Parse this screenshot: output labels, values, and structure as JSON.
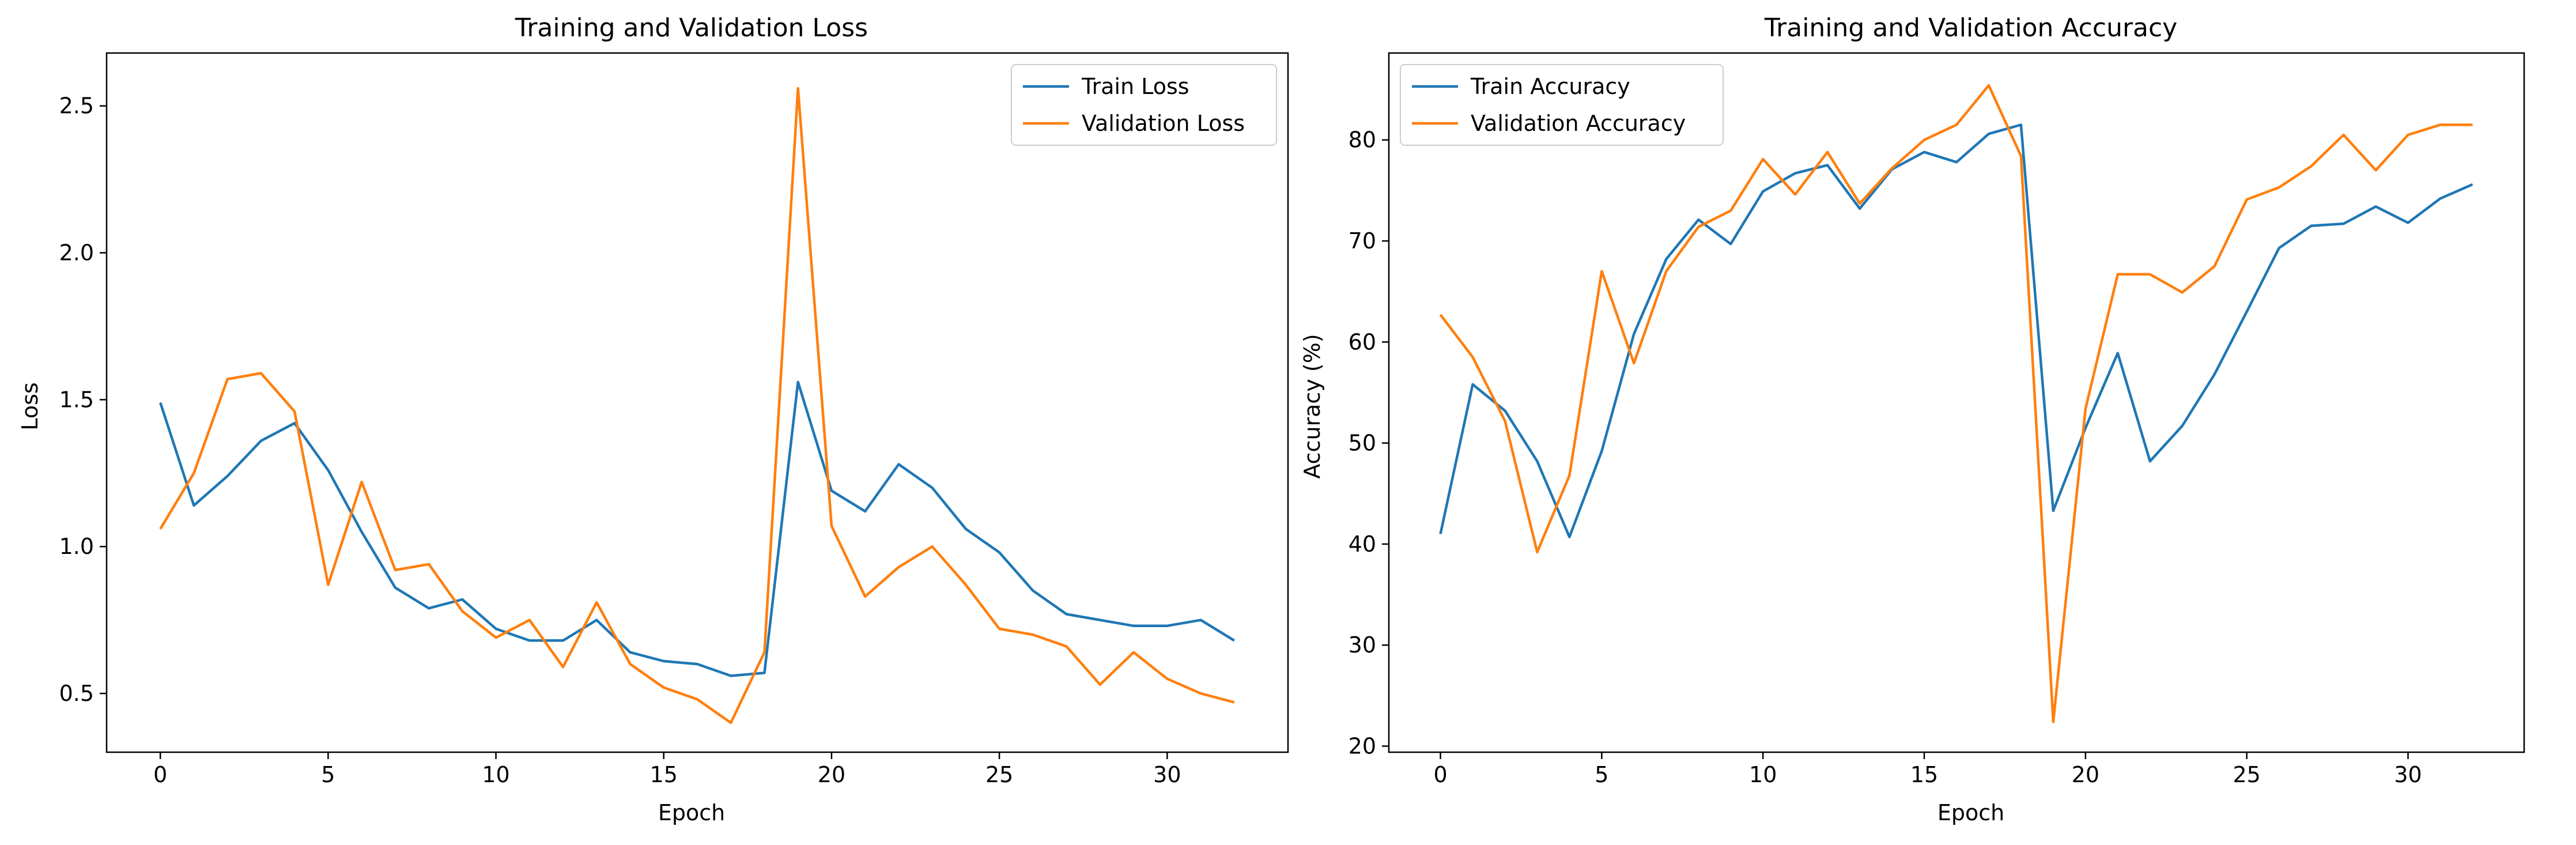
{
  "colors": {
    "train": "#1f77b4",
    "validation": "#ff7f0e",
    "axis": "#000000",
    "background": "#ffffff"
  },
  "chart_data": [
    {
      "type": "line",
      "title": "Training and Validation Loss",
      "xlabel": "Epoch",
      "ylabel": "Loss",
      "xlim": [
        -1.6,
        33.6
      ],
      "ylim": [
        0.3,
        2.68
      ],
      "xticks": [
        0,
        5,
        10,
        15,
        20,
        25,
        30
      ],
      "yticks": [
        0.5,
        1.0,
        1.5,
        2.0,
        2.5
      ],
      "ytick_labels": [
        "0.5",
        "1.0",
        "1.5",
        "2.0",
        "2.5"
      ],
      "grid": false,
      "legend": "top-right",
      "x": [
        0,
        1,
        2,
        3,
        4,
        5,
        6,
        7,
        8,
        9,
        10,
        11,
        12,
        13,
        14,
        15,
        16,
        17,
        18,
        19,
        20,
        21,
        22,
        23,
        24,
        25,
        26,
        27,
        28,
        29,
        30,
        31,
        32
      ],
      "series": [
        {
          "name": "Train Loss",
          "color": "#1f77b4",
          "values": [
            1.49,
            1.14,
            1.24,
            1.36,
            1.42,
            1.26,
            1.05,
            0.86,
            0.79,
            0.82,
            0.72,
            0.68,
            0.68,
            0.75,
            0.64,
            0.61,
            0.6,
            0.56,
            0.57,
            1.56,
            1.19,
            1.12,
            1.28,
            1.2,
            1.06,
            0.98,
            0.85,
            0.77,
            0.75,
            0.73,
            0.73,
            0.75,
            0.68
          ]
        },
        {
          "name": "Validation Loss",
          "color": "#ff7f0e",
          "values": [
            1.06,
            1.25,
            1.57,
            1.59,
            1.46,
            0.87,
            1.22,
            0.92,
            0.94,
            0.78,
            0.69,
            0.75,
            0.59,
            0.81,
            0.6,
            0.52,
            0.48,
            0.4,
            0.64,
            2.56,
            1.07,
            0.83,
            0.93,
            1.0,
            0.87,
            0.72,
            0.7,
            0.66,
            0.53,
            0.64,
            0.55,
            0.5,
            0.47
          ]
        }
      ]
    },
    {
      "type": "line",
      "title": "Training and Validation Accuracy",
      "xlabel": "Epoch",
      "ylabel": "Accuracy (%)",
      "xlim": [
        -1.6,
        33.6
      ],
      "ylim": [
        19.4,
        88.6
      ],
      "xticks": [
        0,
        5,
        10,
        15,
        20,
        25,
        30
      ],
      "yticks": [
        20,
        30,
        40,
        50,
        60,
        70,
        80
      ],
      "ytick_labels": [
        "20",
        "30",
        "40",
        "50",
        "60",
        "70",
        "80"
      ],
      "grid": false,
      "legend": "top-left",
      "x": [
        0,
        1,
        2,
        3,
        4,
        5,
        6,
        7,
        8,
        9,
        10,
        11,
        12,
        13,
        14,
        15,
        16,
        17,
        18,
        19,
        20,
        21,
        22,
        23,
        24,
        25,
        26,
        27,
        28,
        29,
        30,
        31,
        32
      ],
      "series": [
        {
          "name": "Train Accuracy",
          "color": "#1f77b4",
          "values": [
            41.0,
            55.8,
            53.2,
            48.2,
            40.7,
            49.2,
            60.8,
            68.2,
            72.1,
            69.7,
            74.9,
            76.7,
            77.5,
            73.2,
            77.1,
            78.8,
            77.8,
            80.6,
            81.5,
            43.3,
            51.5,
            58.9,
            48.2,
            51.7,
            56.8,
            63.0,
            69.3,
            71.5,
            71.7,
            73.4,
            71.8,
            74.2,
            75.6
          ]
        },
        {
          "name": "Validation Accuracy",
          "color": "#ff7f0e",
          "values": [
            62.7,
            58.5,
            52.2,
            39.2,
            46.8,
            67.0,
            57.9,
            67.0,
            71.4,
            73.0,
            78.1,
            74.6,
            78.8,
            73.7,
            77.2,
            80.0,
            81.5,
            85.4,
            78.4,
            22.4,
            53.4,
            66.7,
            66.7,
            64.9,
            67.5,
            74.1,
            75.3,
            77.4,
            80.5,
            77.0,
            80.5,
            81.5,
            81.5
          ]
        }
      ]
    }
  ]
}
